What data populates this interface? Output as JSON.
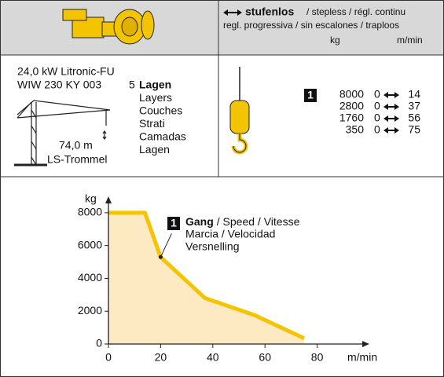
{
  "header": {
    "mode": "stufenlos",
    "mode_translations": "/ stepless / régl. continu",
    "line2": "regl. progressiva / sin escalones / traploos",
    "unit_load": "kg",
    "unit_speed": "m/min"
  },
  "drive": {
    "power": "24,0 kW Litronic-FU",
    "winch": "WIW 230 KY 003",
    "layers_count": 5,
    "layers_labels": [
      "Lagen",
      "Layers",
      "Couches",
      "Strati",
      "Camadas",
      "Lagen"
    ],
    "rope_length": "74,0 m",
    "drum": "LS-Trommel"
  },
  "speed_table": {
    "gear": 1,
    "rows": [
      [
        8000,
        0,
        14
      ],
      [
        2800,
        0,
        37
      ],
      [
        1760,
        0,
        56
      ],
      [
        350,
        0,
        75
      ]
    ]
  },
  "chart_data": {
    "type": "area",
    "y_label": "kg",
    "x_label": "m/min",
    "x": [
      0,
      14,
      20,
      37,
      56,
      75
    ],
    "series": [
      {
        "values": [
          8000,
          8000,
          5300,
          2800,
          1760,
          350
        ],
        "color": "#f5c400",
        "fill_color": "#fde9c2"
      }
    ],
    "xlim": [
      0,
      100
    ],
    "ylim": [
      0,
      9000
    ],
    "xticks": [
      0,
      20,
      40,
      60,
      80
    ],
    "yticks": [
      0,
      2000,
      4000,
      6000,
      8000
    ],
    "annotation": {
      "gear": 1,
      "title": "Gang",
      "text": [
        "/ Speed / Vitesse",
        "Marcia / Velocidad",
        "Versnelling"
      ]
    }
  }
}
